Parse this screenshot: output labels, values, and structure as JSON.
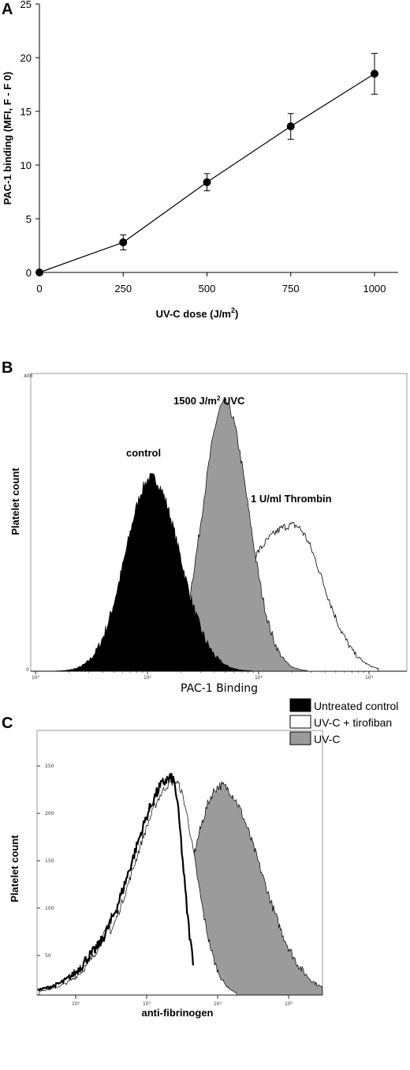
{
  "chart_data": [
    {
      "panel": "A",
      "type": "line",
      "x": [
        0,
        250,
        500,
        750,
        1000
      ],
      "values": [
        0,
        2.8,
        8.4,
        13.6,
        18.5
      ],
      "errors": [
        0,
        0.7,
        0.8,
        1.2,
        1.9
      ],
      "xlabel": "UV-C dose (J/m",
      "xlabel_sup": "2",
      "xlabel_end": ")",
      "ylabel": "PAC-1 binding (MFI, F - F  0)",
      "xlim": [
        0,
        1000
      ],
      "ylim": [
        0,
        25
      ],
      "xticks": [
        "0",
        "250",
        "500",
        "750",
        "1000"
      ],
      "yticks": [
        "0",
        "5",
        "10",
        "15",
        "20",
        "25"
      ],
      "grid": false
    },
    {
      "panel": "B",
      "type": "area",
      "xlabel": "PAC-1 Binding",
      "ylabel": "Platelet count",
      "xscale": "log",
      "xlim": [
        1,
        10000
      ],
      "ylim": [
        0,
        400
      ],
      "xticks": [
        "10⁰",
        "10¹",
        "10²",
        "10³"
      ],
      "yticks": [
        "0",
        "400"
      ],
      "series": [
        {
          "name": "control",
          "peak_x": 10,
          "peak_y": 245,
          "color": "#000000"
        },
        {
          "name": "1500 J/m² UVC",
          "peak_x": 30,
          "peak_y": 340,
          "color": "#9b9b9b"
        },
        {
          "name": "1 U/ml Thrombin",
          "peak_x": 180,
          "peak_y": 180,
          "color": "#ffffff"
        }
      ],
      "annotations": [
        "1500 J/m",
        "2",
        " UVC",
        "control",
        "1 U/ml Thrombin"
      ]
    },
    {
      "panel": "C",
      "type": "area",
      "xlabel": "anti-fibrinogen",
      "ylabel": "Platelet count",
      "xscale": "log",
      "xlim": [
        30,
        300000
      ],
      "ylim": [
        0,
        280
      ],
      "xticks": [
        "10²",
        "10³",
        "10⁴",
        "10⁵"
      ],
      "yticks": [
        "50",
        "100",
        "150",
        "200",
        "250"
      ],
      "legend_position": "top-right",
      "series": [
        {
          "name": "Untreated control",
          "peak_x": 2000,
          "color": "#000000"
        },
        {
          "name": "UV-C + tirofiban",
          "peak_x": 2300,
          "color": "#ffffff"
        },
        {
          "name": "UV-C",
          "peak_x": 9000,
          "color": "#9b9b9b"
        }
      ]
    }
  ]
}
